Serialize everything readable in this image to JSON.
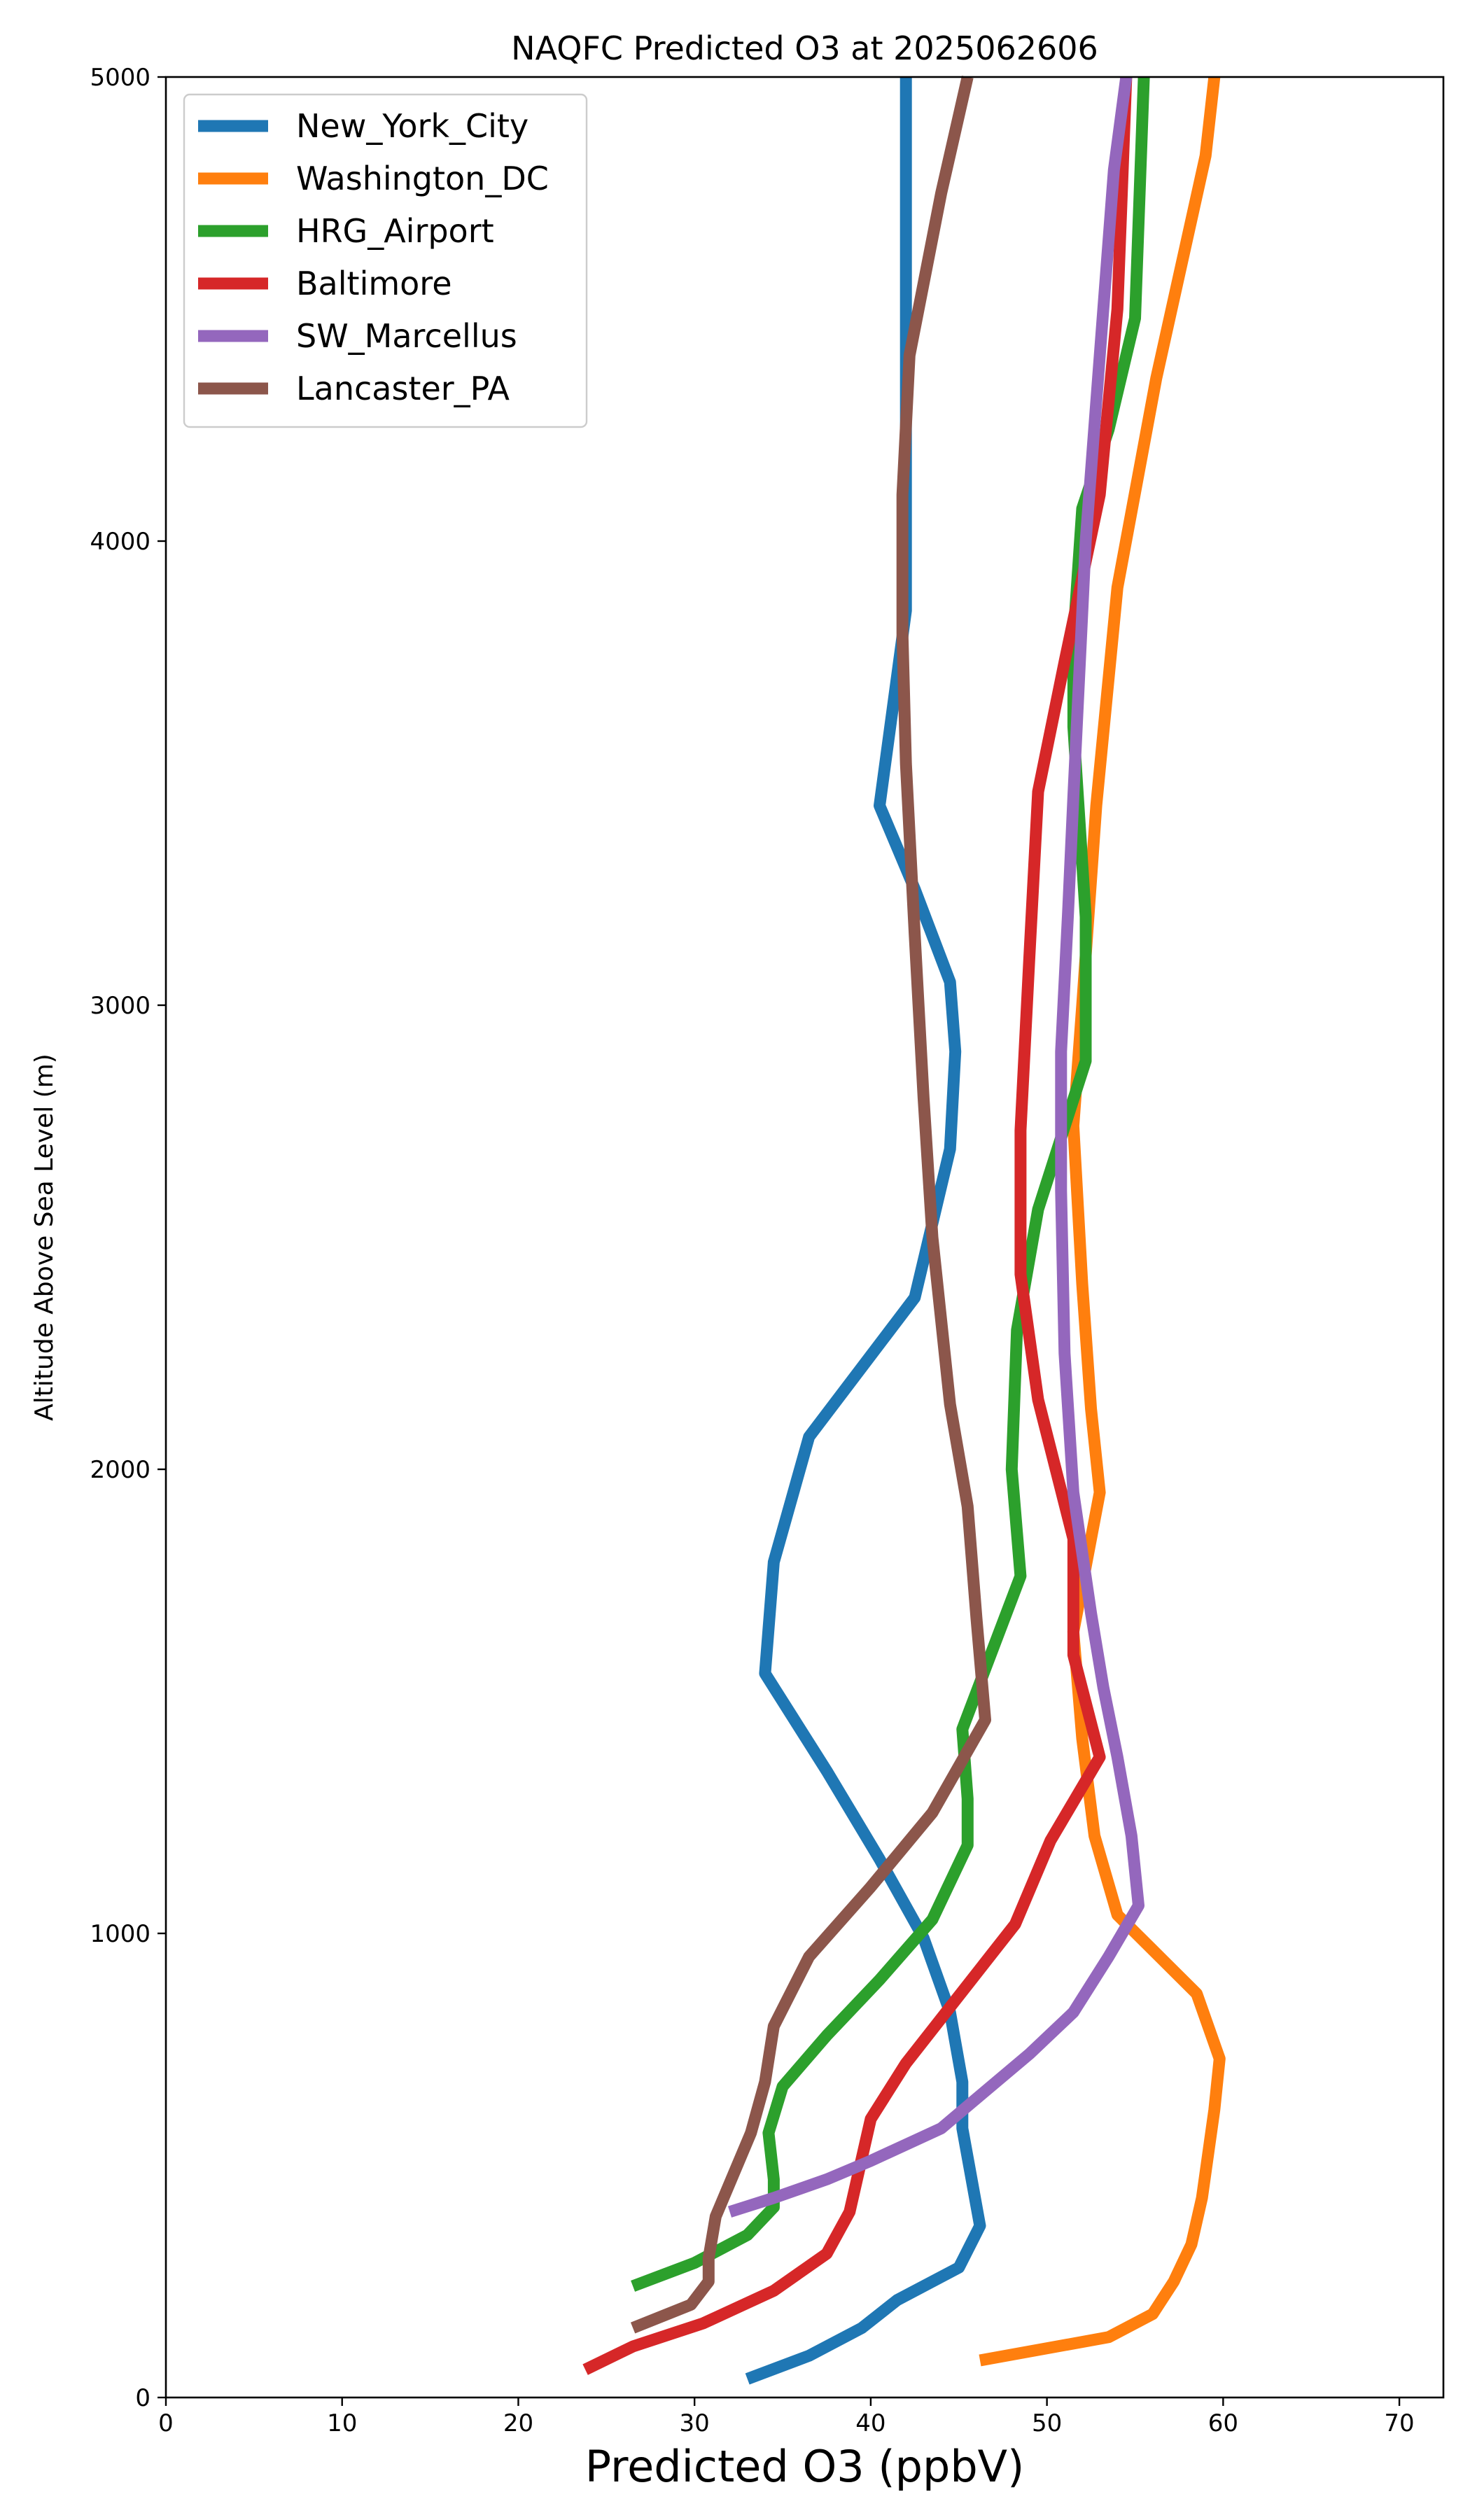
{
  "chart_data": {
    "type": "line",
    "title": "NAQFC Predicted O3 at 2025062606",
    "xlabel": "Predicted O3 (ppbV)",
    "ylabel": "Altitude Above Sea Level (m)",
    "xlim": [
      0,
      72.5
    ],
    "ylim": [
      0,
      5000
    ],
    "xticks": [
      0,
      10,
      20,
      30,
      40,
      50,
      60,
      70
    ],
    "yticks": [
      0,
      1000,
      2000,
      3000,
      4000,
      5000
    ],
    "grid": false,
    "legend_position": "top-left",
    "series": [
      {
        "name": "New_York_City",
        "color": "#1f77b4",
        "x": [
          33,
          36.5,
          39.5,
          41.5,
          45,
          46.2,
          45.2,
          45.2,
          44.5,
          43,
          40.5,
          37.5,
          34,
          34.5,
          36.5,
          42.5,
          44.5,
          44.8,
          44.5,
          42.5,
          40.5,
          42,
          42,
          42,
          42
        ],
        "y": [
          40,
          90,
          150,
          210,
          280,
          370,
          580,
          680,
          830,
          990,
          1160,
          1350,
          1560,
          1800,
          2070,
          2370,
          2690,
          2900,
          3050,
          3250,
          3430,
          3850,
          4200,
          4600,
          5000
        ]
      },
      {
        "name": "Washington_DC",
        "color": "#ff7f0e",
        "x": [
          46.2,
          53.5,
          56,
          57.2,
          58.2,
          58.8,
          59.5,
          59.8,
          58.5,
          54,
          52.7,
          52,
          51.5,
          53,
          52.5,
          52,
          51.5,
          52,
          52.8,
          54,
          56.2,
          59,
          59.5
        ],
        "y": [
          80,
          130,
          180,
          250,
          330,
          430,
          620,
          730,
          870,
          1040,
          1210,
          1420,
          1650,
          1950,
          2130,
          2400,
          2740,
          3000,
          3430,
          3900,
          4350,
          4830,
          5000
        ]
      },
      {
        "name": "HRG_Airport",
        "color": "#2ca02c",
        "x": [
          26.5,
          30,
          33,
          34.5,
          34.5,
          34.2,
          35,
          37.5,
          40.5,
          43.5,
          45.5,
          45.5,
          45.2,
          48.5,
          48,
          48.3,
          49.5,
          52.2,
          52.2,
          51.5,
          51.5,
          52,
          53.5,
          55,
          55.5
        ],
        "y": [
          240,
          290,
          350,
          410,
          470,
          570,
          670,
          780,
          900,
          1030,
          1190,
          1290,
          1440,
          1770,
          2000,
          2300,
          2560,
          2880,
          3190,
          3600,
          3790,
          4070,
          4240,
          4480,
          5000
        ]
      },
      {
        "name": "Baltimore",
        "color": "#d62728",
        "x": [
          23.8,
          26.5,
          30.5,
          34.5,
          37.5,
          38.8,
          40,
          42,
          48.2,
          50.2,
          53,
          51.5,
          51.5,
          49.5,
          48.5,
          48.5,
          49,
          49.5,
          51,
          53,
          54,
          54.5
        ],
        "y": [
          60,
          110,
          160,
          230,
          310,
          400,
          600,
          720,
          1020,
          1200,
          1380,
          1600,
          1850,
          2150,
          2420,
          2730,
          3100,
          3460,
          3740,
          4100,
          4500,
          5000
        ]
      },
      {
        "name": "SW_Marcellus",
        "color": "#9467bd",
        "x": [
          32,
          34.5,
          37.5,
          40,
          44,
          46.5,
          49,
          51.5,
          53.5,
          55.2,
          54.8,
          54,
          53.2,
          52.5,
          51.5,
          51,
          50.8,
          50.8,
          51.2,
          51.5,
          52.2,
          53,
          53.8,
          54.5
        ],
        "y": [
          400,
          430,
          470,
          510,
          580,
          660,
          740,
          830,
          950,
          1060,
          1210,
          1380,
          1530,
          1690,
          1950,
          2250,
          2600,
          2900,
          3200,
          3450,
          4000,
          4400,
          4800,
          5000
        ]
      },
      {
        "name": "Lancaster_PA",
        "color": "#8c564b",
        "x": [
          26.5,
          29.8,
          30.8,
          30.8,
          31.2,
          33.2,
          34,
          34.5,
          36.5,
          40,
          43.5,
          46.5,
          46,
          45.5,
          44.5,
          43.5,
          43,
          42.5,
          42,
          41.8,
          41.8,
          42.2,
          44,
          45.5
        ],
        "y": [
          150,
          200,
          250,
          300,
          390,
          570,
          680,
          800,
          950,
          1100,
          1260,
          1460,
          1680,
          1920,
          2140,
          2500,
          2800,
          3150,
          3520,
          3800,
          4100,
          4400,
          4750,
          5000
        ]
      }
    ]
  }
}
